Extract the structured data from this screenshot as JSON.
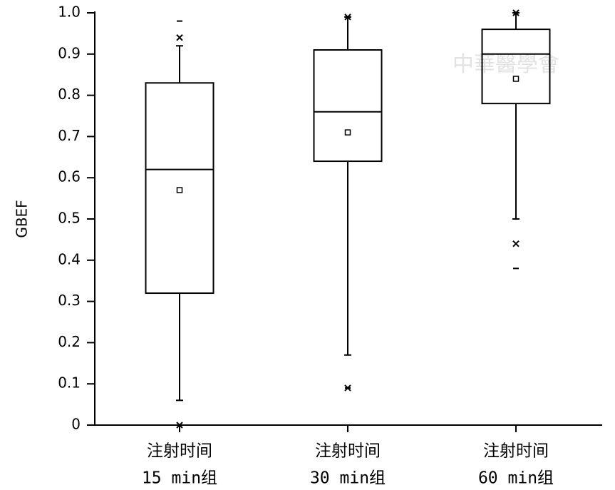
{
  "chart_data": {
    "type": "box",
    "ylabel": "GBEF",
    "watermark": "中華醫學會",
    "categories": [
      [
        "注射时间",
        "15 min组"
      ],
      [
        "注射时间",
        "30 min组"
      ],
      [
        "注射时间",
        "60 min组"
      ]
    ],
    "boxes": [
      {
        "whisker_low": 0.06,
        "q1": 0.32,
        "median": 0.62,
        "q3": 0.83,
        "whisker_high": 0.92,
        "mean": 0.57,
        "p1": 0,
        "p99": 0.94,
        "min": 0,
        "max": 0.98
      },
      {
        "whisker_low": 0.17,
        "q1": 0.64,
        "median": 0.76,
        "q3": 0.91,
        "whisker_high": 0.99,
        "mean": 0.71,
        "p1": 0.09,
        "p99": 0.99,
        "min": 0.09,
        "max": 0.99
      },
      {
        "whisker_low": 0.5,
        "q1": 0.78,
        "median": 0.9,
        "q3": 0.96,
        "whisker_high": 1.0,
        "mean": 0.84,
        "p1": 0.44,
        "p99": 1.0,
        "min": 0.38,
        "max": 1.0
      }
    ],
    "color": "#000000",
    "ylim": [
      0,
      1
    ],
    "yticks": [
      0,
      0.1,
      0.2,
      0.3,
      0.4,
      0.5,
      0.6,
      0.7,
      0.8,
      0.9,
      {
        "value": 1,
        "label": "1.0"
      }
    ]
  }
}
